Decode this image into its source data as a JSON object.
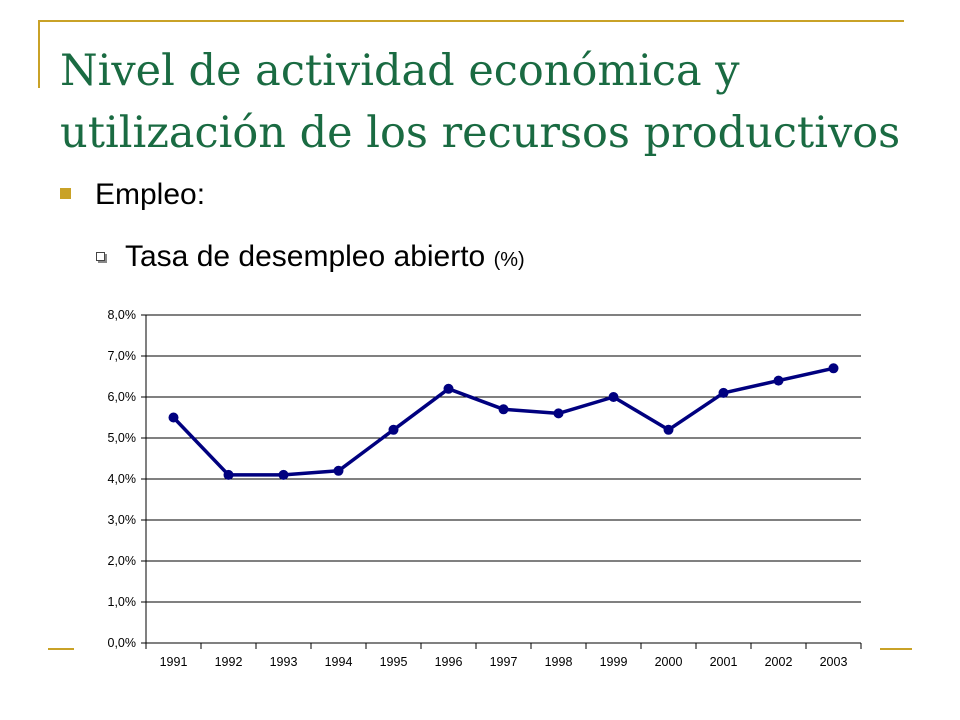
{
  "slide": {
    "title": "Nivel de actividad económica y utilización de los recursos productivos",
    "bullet_1": "Empleo:",
    "bullet_2": "Tasa de desempleo abierto",
    "bullet_2_unit": "(%)"
  },
  "colors": {
    "accent": "#c9a227",
    "title": "#1a6b42",
    "series": "#00007f"
  },
  "chart_data": {
    "type": "line",
    "title": "",
    "xlabel": "",
    "ylabel": "",
    "categories": [
      "1991",
      "1992",
      "1993",
      "1994",
      "1995",
      "1996",
      "1997",
      "1998",
      "1999",
      "2000",
      "2001",
      "2002",
      "2003"
    ],
    "series": [
      {
        "name": "Tasa de desempleo abierto",
        "values": [
          5.5,
          4.1,
          4.1,
          4.2,
          5.2,
          6.2,
          5.7,
          5.6,
          6.0,
          5.2,
          6.1,
          6.4,
          6.7
        ]
      }
    ],
    "ylim": [
      0,
      8
    ],
    "yticks": [
      "0,0%",
      "1,0%",
      "2,0%",
      "3,0%",
      "4,0%",
      "5,0%",
      "6,0%",
      "7,0%",
      "8,0%"
    ],
    "grid": true,
    "legend": "none"
  }
}
